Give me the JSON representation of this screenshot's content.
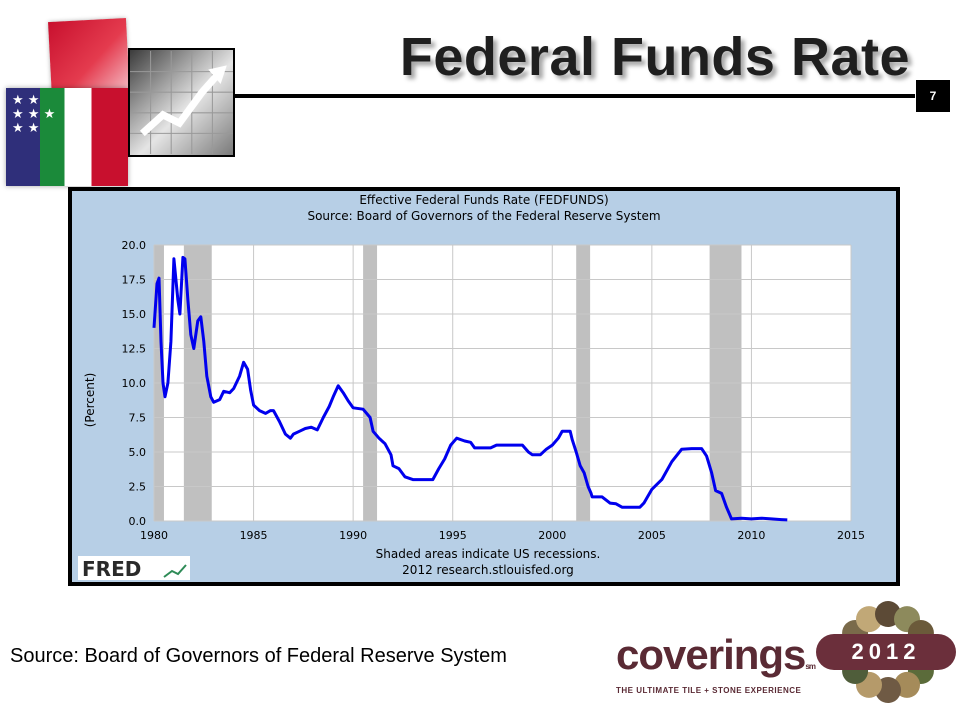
{
  "slide": {
    "title": "Federal Funds Rate",
    "number": "7",
    "footer_source": "Source: Board of Governors of Federal Reserve System"
  },
  "brand": {
    "name": "coverings",
    "service_mark": "sm",
    "tagline": "THE ULTIMATE TILE + STONE EXPERIENCE",
    "year": "2012",
    "color": "#6b2f3b"
  },
  "colors": {
    "chart_bg": "#b7cfe6",
    "plot_bg": "#ffffff",
    "recession": "#c0c0c0",
    "line": "#0000ee",
    "grid": "#c8c8c8"
  },
  "chart_data": {
    "type": "line",
    "title": "Effective Federal Funds Rate (FEDFUNDS)",
    "subtitle": "Source: Board of Governors of the Federal Reserve System",
    "ylabel": "(Percent)",
    "xlabel": "",
    "xlim": [
      1980,
      2015
    ],
    "ylim": [
      0,
      20
    ],
    "grid": true,
    "x_ticks": [
      "1980",
      "1985",
      "1990",
      "1995",
      "2000",
      "2005",
      "2010",
      "2015"
    ],
    "y_ticks": [
      "0.0",
      "2.5",
      "5.0",
      "7.5",
      "10.0",
      "12.5",
      "15.0",
      "17.5",
      "20.0"
    ],
    "note_lines": [
      "Shaded areas indicate US recessions.",
      "2012 research.stlouisfed.org"
    ],
    "watermark": "FRED",
    "recessions": [
      [
        1980.0,
        1980.5
      ],
      [
        1981.5,
        1982.9
      ],
      [
        1990.5,
        1991.2
      ],
      [
        2001.2,
        2001.9
      ],
      [
        2007.9,
        2009.5
      ]
    ],
    "series": [
      {
        "values": [
          [
            1980.0,
            14.0
          ],
          [
            1980.15,
            17.2
          ],
          [
            1980.25,
            17.6
          ],
          [
            1980.35,
            13.0
          ],
          [
            1980.45,
            10.0
          ],
          [
            1980.55,
            9.0
          ],
          [
            1980.7,
            10.0
          ],
          [
            1980.85,
            13.0
          ],
          [
            1981.0,
            19.0
          ],
          [
            1981.2,
            16.0
          ],
          [
            1981.3,
            15.0
          ],
          [
            1981.45,
            19.1
          ],
          [
            1981.55,
            19.0
          ],
          [
            1981.7,
            16.0
          ],
          [
            1981.85,
            13.5
          ],
          [
            1982.0,
            12.5
          ],
          [
            1982.2,
            14.5
          ],
          [
            1982.35,
            14.8
          ],
          [
            1982.5,
            13.0
          ],
          [
            1982.65,
            10.5
          ],
          [
            1982.85,
            9.0
          ],
          [
            1983.0,
            8.6
          ],
          [
            1983.3,
            8.8
          ],
          [
            1983.5,
            9.4
          ],
          [
            1983.8,
            9.3
          ],
          [
            1984.0,
            9.6
          ],
          [
            1984.3,
            10.5
          ],
          [
            1984.5,
            11.5
          ],
          [
            1984.7,
            11.0
          ],
          [
            1984.85,
            9.5
          ],
          [
            1985.0,
            8.4
          ],
          [
            1985.3,
            8.0
          ],
          [
            1985.6,
            7.8
          ],
          [
            1985.85,
            8.0
          ],
          [
            1986.0,
            8.0
          ],
          [
            1986.3,
            7.2
          ],
          [
            1986.6,
            6.3
          ],
          [
            1986.85,
            6.0
          ],
          [
            1987.0,
            6.3
          ],
          [
            1987.3,
            6.5
          ],
          [
            1987.6,
            6.7
          ],
          [
            1987.9,
            6.8
          ],
          [
            1988.2,
            6.6
          ],
          [
            1988.5,
            7.5
          ],
          [
            1988.8,
            8.3
          ],
          [
            1989.0,
            9.0
          ],
          [
            1989.25,
            9.8
          ],
          [
            1989.5,
            9.3
          ],
          [
            1989.75,
            8.7
          ],
          [
            1990.0,
            8.2
          ],
          [
            1990.5,
            8.1
          ],
          [
            1990.85,
            7.5
          ],
          [
            1991.0,
            6.5
          ],
          [
            1991.3,
            6.0
          ],
          [
            1991.6,
            5.6
          ],
          [
            1991.9,
            4.8
          ],
          [
            1992.0,
            4.0
          ],
          [
            1992.3,
            3.8
          ],
          [
            1992.6,
            3.2
          ],
          [
            1993.0,
            3.0
          ],
          [
            1993.5,
            3.0
          ],
          [
            1994.0,
            3.0
          ],
          [
            1994.3,
            3.8
          ],
          [
            1994.6,
            4.5
          ],
          [
            1994.9,
            5.5
          ],
          [
            1995.2,
            6.0
          ],
          [
            1995.6,
            5.8
          ],
          [
            1995.9,
            5.7
          ],
          [
            1996.1,
            5.3
          ],
          [
            1996.5,
            5.3
          ],
          [
            1996.9,
            5.3
          ],
          [
            1997.2,
            5.5
          ],
          [
            1997.6,
            5.5
          ],
          [
            1998.0,
            5.5
          ],
          [
            1998.5,
            5.5
          ],
          [
            1998.8,
            5.0
          ],
          [
            1999.0,
            4.8
          ],
          [
            1999.4,
            4.8
          ],
          [
            1999.7,
            5.2
          ],
          [
            2000.0,
            5.5
          ],
          [
            2000.3,
            6.0
          ],
          [
            2000.5,
            6.5
          ],
          [
            2000.9,
            6.5
          ],
          [
            2001.0,
            5.9
          ],
          [
            2001.2,
            5.0
          ],
          [
            2001.4,
            4.0
          ],
          [
            2001.6,
            3.5
          ],
          [
            2001.8,
            2.5
          ],
          [
            2001.95,
            2.0
          ],
          [
            2002.0,
            1.75
          ],
          [
            2002.5,
            1.75
          ],
          [
            2002.9,
            1.3
          ],
          [
            2003.2,
            1.25
          ],
          [
            2003.5,
            1.0
          ],
          [
            2004.0,
            1.0
          ],
          [
            2004.4,
            1.0
          ],
          [
            2004.6,
            1.3
          ],
          [
            2005.0,
            2.3
          ],
          [
            2005.5,
            3.0
          ],
          [
            2006.0,
            4.3
          ],
          [
            2006.5,
            5.2
          ],
          [
            2007.0,
            5.25
          ],
          [
            2007.5,
            5.25
          ],
          [
            2007.75,
            4.7
          ],
          [
            2008.0,
            3.5
          ],
          [
            2008.2,
            2.2
          ],
          [
            2008.5,
            2.0
          ],
          [
            2008.75,
            1.0
          ],
          [
            2008.9,
            0.5
          ],
          [
            2009.0,
            0.15
          ],
          [
            2009.5,
            0.2
          ],
          [
            2010.0,
            0.15
          ],
          [
            2010.5,
            0.2
          ],
          [
            2011.0,
            0.15
          ],
          [
            2011.5,
            0.1
          ],
          [
            2011.8,
            0.08
          ]
        ]
      }
    ]
  }
}
